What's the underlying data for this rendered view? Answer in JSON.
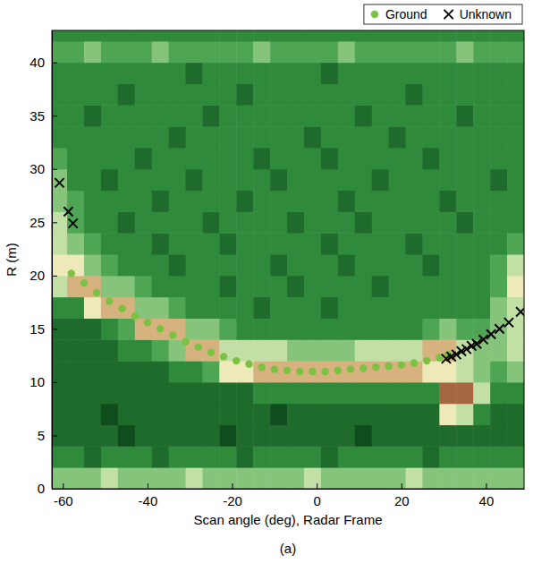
{
  "chart_data": {
    "type": "heatmap",
    "x_label": "Scan angle (deg), Radar Frame",
    "y_label": "R (m)",
    "caption": "(a)",
    "xlim": [
      -62.6,
      49
    ],
    "xticks": [
      -60,
      -40,
      -20,
      0,
      20,
      40
    ],
    "ylim": [
      0,
      43
    ],
    "yticks": [
      0,
      5,
      10,
      15,
      20,
      25,
      30,
      35,
      40
    ],
    "legend": "above",
    "cell_x_edges": [
      -63,
      -59,
      -55,
      -51,
      -47,
      -43,
      -39,
      -35,
      -31,
      -27,
      -23,
      -19,
      -15,
      -11,
      -7,
      -3,
      1,
      5,
      9,
      13,
      17,
      21,
      25,
      29,
      33,
      37,
      41,
      45,
      49
    ],
    "cell_y_edges": [
      0,
      2,
      4,
      6,
      8,
      10,
      12,
      14,
      16,
      18,
      20,
      22,
      24,
      26,
      28,
      30,
      32,
      34,
      36,
      38,
      40,
      42,
      44
    ],
    "zlim": [
      1,
      9
    ],
    "cells": [
      [
        5,
        5,
        5,
        6,
        5,
        5,
        5,
        5,
        6,
        5,
        5,
        5,
        5,
        5,
        5,
        6,
        5,
        5,
        5,
        5,
        5,
        6,
        5,
        5,
        5,
        5,
        5,
        5
      ],
      [
        3,
        3,
        2,
        3,
        3,
        3,
        2,
        3,
        3,
        3,
        3,
        2,
        3,
        3,
        3,
        3,
        2,
        3,
        3,
        3,
        3,
        3,
        2,
        3,
        3,
        3,
        3,
        3
      ],
      [
        2,
        2,
        2,
        2,
        1,
        2,
        2,
        2,
        2,
        2,
        1,
        2,
        2,
        2,
        2,
        2,
        2,
        2,
        1,
        2,
        2,
        2,
        2,
        2,
        2,
        2,
        2,
        2
      ],
      [
        2,
        2,
        2,
        1,
        2,
        2,
        2,
        2,
        2,
        2,
        2,
        2,
        2,
        1,
        2,
        2,
        2,
        2,
        2,
        2,
        2,
        2,
        2,
        7,
        6,
        3,
        2,
        2
      ],
      [
        2,
        2,
        2,
        2,
        2,
        2,
        2,
        2,
        2,
        2,
        2,
        2,
        3,
        3,
        3,
        3,
        3,
        3,
        3,
        3,
        3,
        3,
        3,
        9,
        9,
        6,
        3,
        3
      ],
      [
        2,
        2,
        2,
        2,
        2,
        2,
        2,
        3,
        3,
        4,
        7,
        7,
        8,
        8,
        8,
        8,
        8,
        8,
        8,
        8,
        8,
        8,
        7,
        7,
        6,
        5,
        4,
        5
      ],
      [
        2,
        2,
        2,
        2,
        3,
        3,
        4,
        5,
        8,
        8,
        6,
        6,
        6,
        6,
        5,
        5,
        5,
        5,
        6,
        6,
        6,
        6,
        8,
        8,
        6,
        5,
        5,
        6
      ],
      [
        2,
        2,
        2,
        3,
        4,
        8,
        8,
        8,
        5,
        5,
        4,
        3,
        3,
        3,
        3,
        3,
        3,
        3,
        3,
        3,
        3,
        3,
        4,
        5,
        4,
        4,
        5,
        6
      ],
      [
        3,
        3,
        7,
        8,
        8,
        5,
        5,
        4,
        3,
        3,
        3,
        3,
        2,
        3,
        3,
        3,
        2,
        3,
        3,
        3,
        3,
        3,
        3,
        3,
        3,
        3,
        5,
        6
      ],
      [
        6,
        8,
        8,
        5,
        5,
        4,
        3,
        3,
        3,
        3,
        2,
        3,
        3,
        3,
        2,
        3,
        3,
        3,
        3,
        2,
        3,
        3,
        3,
        3,
        3,
        3,
        4,
        7
      ],
      [
        7,
        7,
        5,
        4,
        3,
        3,
        3,
        2,
        3,
        3,
        3,
        3,
        3,
        2,
        3,
        3,
        3,
        2,
        3,
        3,
        3,
        3,
        2,
        3,
        3,
        3,
        4,
        6
      ],
      [
        6,
        5,
        4,
        3,
        3,
        3,
        2,
        3,
        3,
        3,
        2,
        3,
        3,
        3,
        3,
        3,
        2,
        3,
        3,
        3,
        3,
        2,
        3,
        3,
        3,
        3,
        3,
        4
      ],
      [
        6,
        4,
        3,
        3,
        2,
        3,
        3,
        3,
        3,
        2,
        3,
        3,
        3,
        3,
        2,
        3,
        3,
        3,
        2,
        3,
        3,
        3,
        3,
        3,
        2,
        3,
        3,
        3
      ],
      [
        5,
        4,
        3,
        3,
        3,
        3,
        2,
        3,
        3,
        3,
        3,
        2,
        3,
        3,
        3,
        3,
        3,
        2,
        3,
        3,
        3,
        3,
        3,
        2,
        3,
        3,
        3,
        3
      ],
      [
        5,
        3,
        3,
        2,
        3,
        3,
        3,
        3,
        2,
        3,
        3,
        3,
        3,
        2,
        3,
        3,
        3,
        3,
        3,
        2,
        3,
        3,
        3,
        3,
        3,
        3,
        2,
        3
      ],
      [
        4,
        3,
        3,
        3,
        3,
        2,
        3,
        3,
        3,
        3,
        3,
        3,
        2,
        3,
        3,
        3,
        2,
        3,
        3,
        3,
        3,
        3,
        2,
        3,
        3,
        3,
        3,
        3
      ],
      [
        3,
        3,
        3,
        3,
        3,
        3,
        3,
        2,
        3,
        3,
        3,
        3,
        3,
        3,
        3,
        2,
        3,
        3,
        3,
        3,
        2,
        3,
        3,
        3,
        3,
        3,
        3,
        3
      ],
      [
        3,
        3,
        2,
        3,
        3,
        3,
        3,
        3,
        3,
        2,
        3,
        3,
        3,
        3,
        3,
        3,
        3,
        3,
        2,
        3,
        3,
        3,
        3,
        3,
        2,
        3,
        3,
        3
      ],
      [
        3,
        3,
        3,
        3,
        2,
        3,
        3,
        3,
        3,
        3,
        3,
        2,
        3,
        3,
        3,
        3,
        3,
        3,
        3,
        3,
        3,
        2,
        3,
        3,
        3,
        3,
        3,
        3
      ],
      [
        3,
        3,
        3,
        3,
        3,
        3,
        3,
        3,
        2,
        3,
        3,
        3,
        3,
        3,
        3,
        3,
        2,
        3,
        3,
        3,
        3,
        3,
        3,
        3,
        3,
        3,
        3,
        3
      ],
      [
        4,
        4,
        5,
        4,
        4,
        4,
        5,
        4,
        4,
        4,
        4,
        4,
        5,
        4,
        4,
        4,
        4,
        5,
        4,
        4,
        4,
        4,
        4,
        4,
        5,
        4,
        4,
        4
      ],
      [
        3,
        3,
        3,
        3,
        3,
        3,
        3,
        3,
        3,
        3,
        3,
        3,
        3,
        3,
        3,
        3,
        3,
        3,
        3,
        3,
        3,
        3,
        3,
        3,
        3,
        3,
        3,
        3
      ]
    ],
    "series": [
      {
        "name": "Ground",
        "type": "scatter",
        "marker": "circle",
        "color": "#7cc242",
        "x": [
          -58,
          -55,
          -52,
          -49,
          -46,
          -43,
          -40,
          -37,
          -34,
          -31,
          -28,
          -25,
          -22,
          -19,
          -16,
          -13,
          -10,
          -7,
          -4,
          -1,
          2,
          5,
          8,
          11,
          14,
          17,
          20,
          23,
          26,
          29,
          31
        ],
        "values": [
          20.2,
          19.3,
          18.4,
          17.6,
          16.9,
          16.2,
          15.6,
          15.0,
          14.4,
          13.8,
          13.3,
          12.8,
          12.4,
          12.0,
          11.7,
          11.4,
          11.2,
          11.1,
          11.0,
          11.0,
          11.0,
          11.1,
          11.2,
          11.3,
          11.4,
          11.5,
          11.6,
          11.8,
          12.0,
          12.3,
          12.6
        ]
      },
      {
        "name": "Unknown",
        "type": "scatter",
        "marker": "x",
        "color": "#000000",
        "x": [
          -60.8,
          -58.7,
          -57.6,
          30.6,
          31.8,
          33.0,
          34.2,
          35.4,
          36.6,
          37.8,
          39.4,
          41.2,
          43.2,
          45.4,
          48.2
        ],
        "values": [
          28.7,
          26.0,
          24.9,
          12.2,
          12.4,
          12.6,
          12.9,
          13.1,
          13.4,
          13.6,
          14.0,
          14.5,
          15.0,
          15.6,
          16.6
        ]
      }
    ]
  }
}
